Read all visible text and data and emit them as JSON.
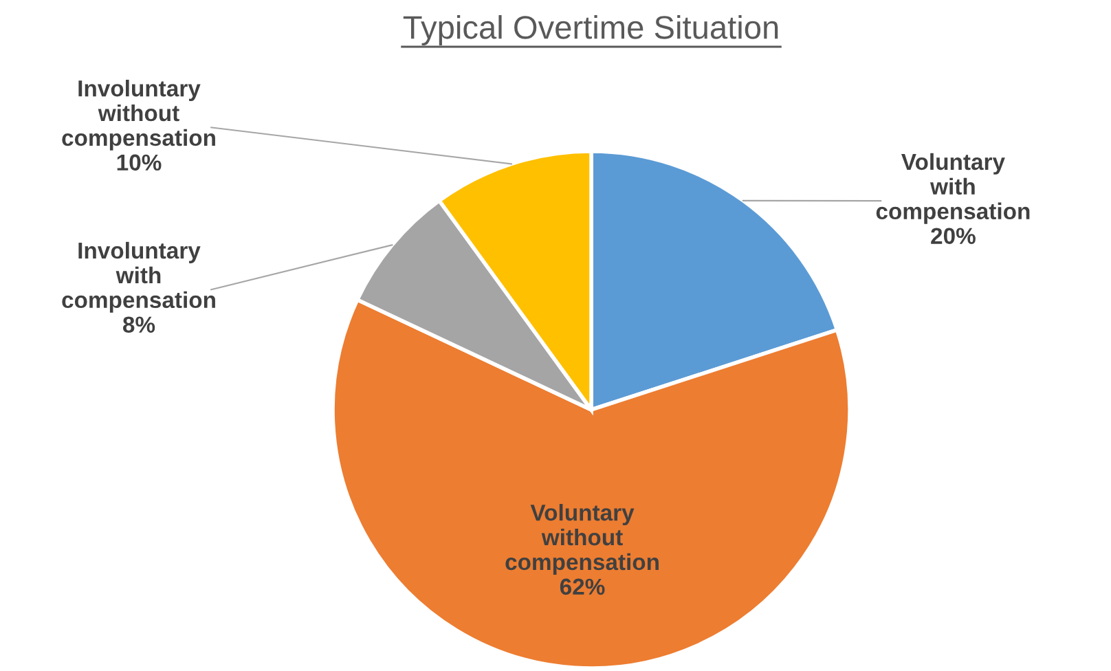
{
  "chart_data": {
    "type": "pie",
    "title": "Typical Overtime Situation",
    "categories": [
      "Voluntary with compensation",
      "Voluntary without compensation",
      "Involuntary with compensation",
      "Involuntary without compensation"
    ],
    "values": [
      20,
      62,
      8,
      10
    ],
    "colors": [
      "#5b9bd5",
      "#ed7d31",
      "#a5a5a5",
      "#ffc000"
    ],
    "value_labels": [
      "20%",
      "62%",
      "8%",
      "10%"
    ],
    "legend": false
  }
}
